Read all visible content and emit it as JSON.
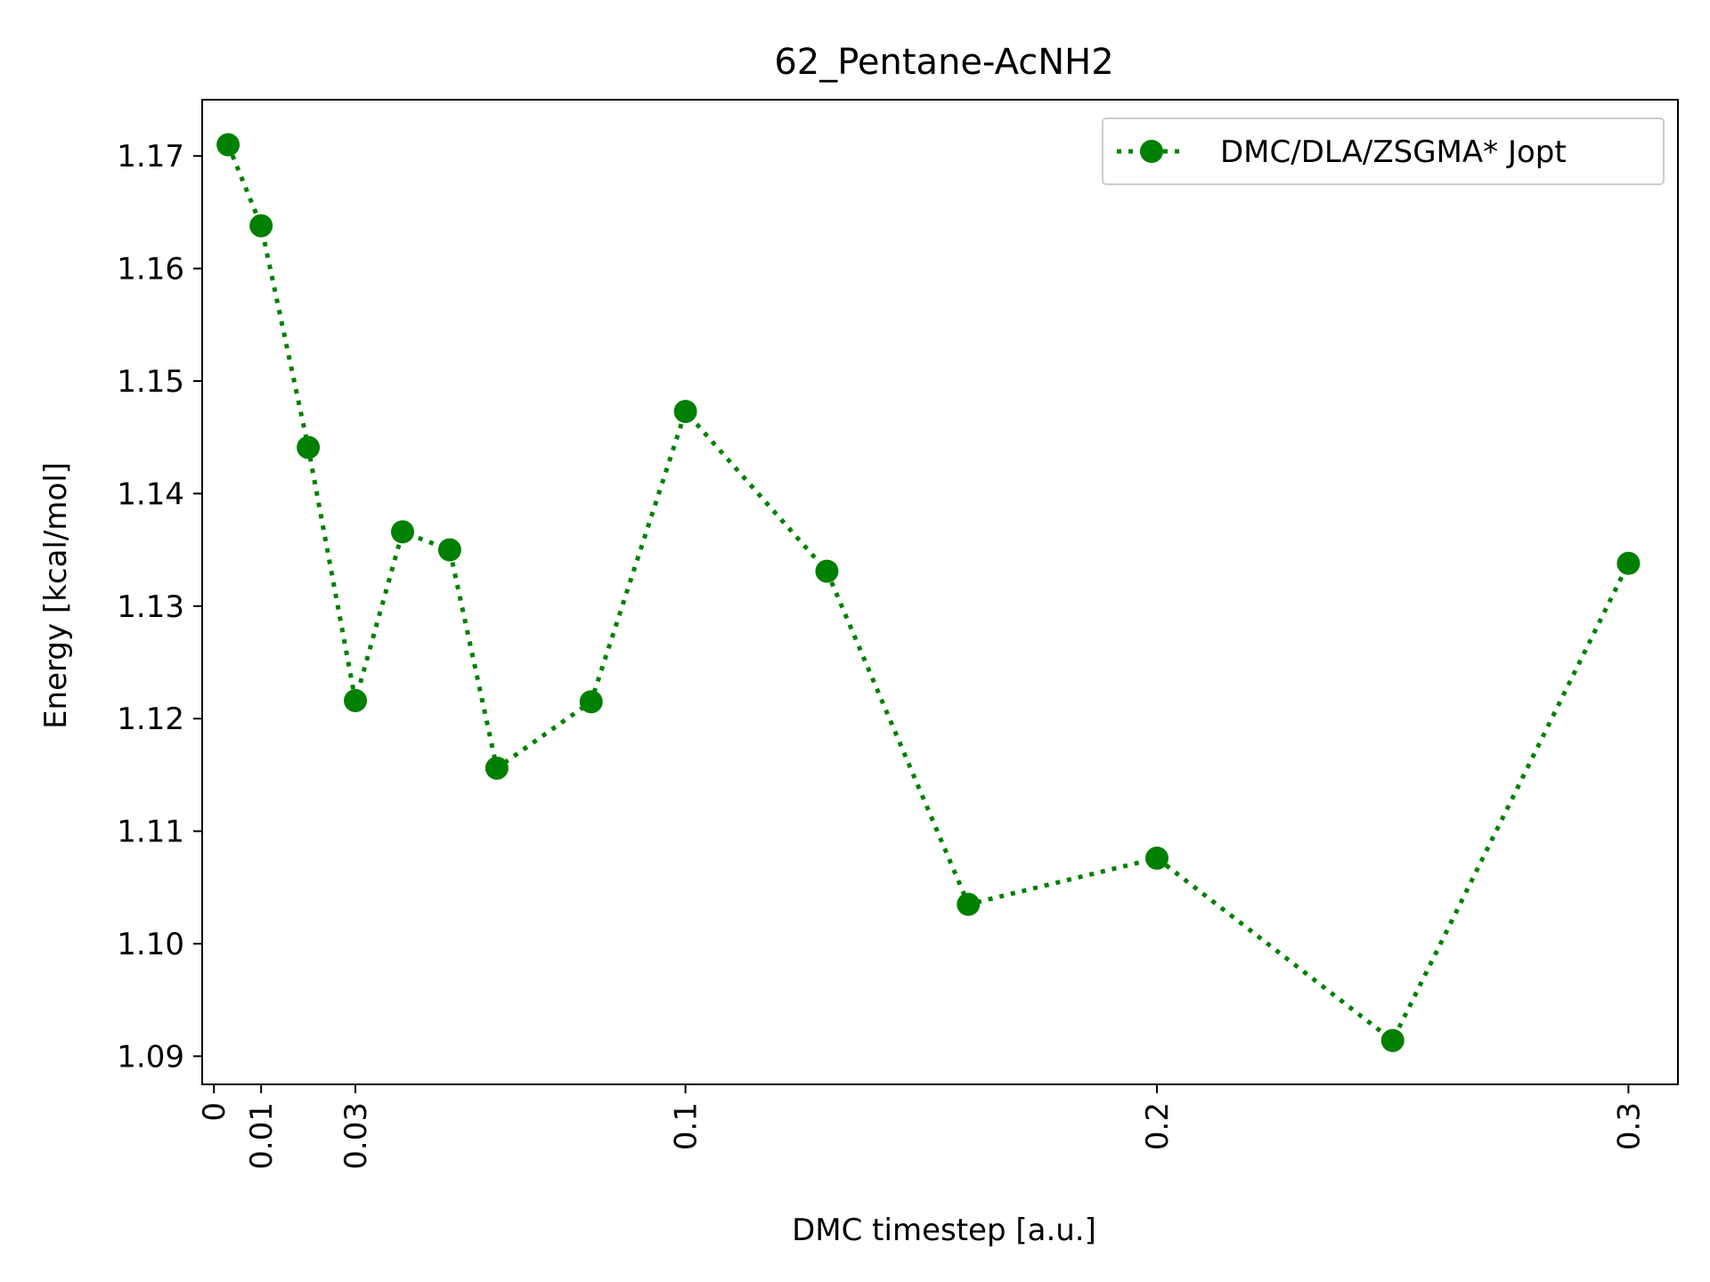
{
  "chart_data": {
    "type": "line",
    "title": "62_Pentane-AcNH2",
    "xlabel": "DMC timestep [a.u.]",
    "ylabel": "Energy [kcal/mol]",
    "xlim": [
      -0.0025,
      0.3105
    ],
    "ylim": [
      1.0875,
      1.175
    ],
    "xticks": [
      0,
      0.01,
      0.03,
      0.1,
      0.2,
      0.3
    ],
    "xtick_labels": [
      "0",
      "0.01",
      "0.03",
      "0.1",
      "0.2",
      "0.3"
    ],
    "yticks": [
      1.09,
      1.1,
      1.11,
      1.12,
      1.13,
      1.14,
      1.15,
      1.16,
      1.17
    ],
    "ytick_labels": [
      "1.09",
      "1.10",
      "1.11",
      "1.12",
      "1.13",
      "1.14",
      "1.15",
      "1.16",
      "1.17"
    ],
    "grid": false,
    "legend_position": "top-right",
    "series": [
      {
        "name": "DMC/DLA/ZSGMA* Jopt",
        "color": "#008000",
        "line_style": "dotted",
        "marker": "circle",
        "x": [
          0.003,
          0.01,
          0.02,
          0.03,
          0.04,
          0.05,
          0.06,
          0.08,
          0.1,
          0.13,
          0.16,
          0.2,
          0.25,
          0.3
        ],
        "y": [
          1.171,
          1.1638,
          1.1441,
          1.1216,
          1.1366,
          1.135,
          1.1156,
          1.1215,
          1.1473,
          1.1331,
          1.1035,
          1.1076,
          1.0914,
          1.1338
        ]
      }
    ]
  }
}
